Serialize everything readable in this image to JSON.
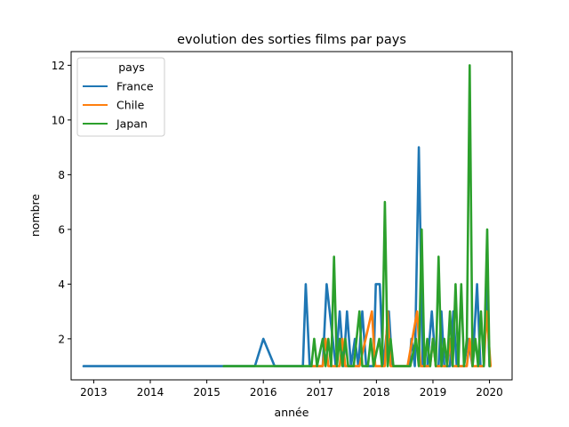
{
  "chart_data": {
    "type": "line",
    "title": "evolution des sorties films par pays",
    "xlabel": "année",
    "ylabel": "nombre",
    "xlim": [
      2012.6,
      2020.4
    ],
    "ylim": [
      0.5,
      12.5
    ],
    "x_ticks": [
      2013,
      2014,
      2015,
      2016,
      2017,
      2018,
      2019,
      2020
    ],
    "y_ticks": [
      2,
      4,
      6,
      8,
      10,
      12
    ],
    "grid": false,
    "legend": {
      "title": "pays",
      "position": "top-left"
    },
    "series": [
      {
        "name": "France",
        "color": "#1f77b4",
        "points": [
          [
            2012.82,
            1
          ],
          [
            2015.85,
            1
          ],
          [
            2016.0,
            2
          ],
          [
            2016.2,
            1
          ],
          [
            2016.7,
            1
          ],
          [
            2016.75,
            4
          ],
          [
            2016.82,
            1
          ],
          [
            2017.05,
            1
          ],
          [
            2017.12,
            4
          ],
          [
            2017.28,
            1
          ],
          [
            2017.35,
            3
          ],
          [
            2017.42,
            1
          ],
          [
            2017.48,
            3
          ],
          [
            2017.55,
            1
          ],
          [
            2017.62,
            2
          ],
          [
            2017.68,
            1
          ],
          [
            2017.75,
            3
          ],
          [
            2017.82,
            1
          ],
          [
            2017.95,
            1
          ],
          [
            2017.99,
            4
          ],
          [
            2018.06,
            4
          ],
          [
            2018.12,
            1
          ],
          [
            2018.22,
            3
          ],
          [
            2018.28,
            1
          ],
          [
            2018.58,
            1
          ],
          [
            2018.62,
            2
          ],
          [
            2018.68,
            1
          ],
          [
            2018.75,
            9
          ],
          [
            2018.82,
            1
          ],
          [
            2018.9,
            1
          ],
          [
            2018.98,
            3
          ],
          [
            2019.05,
            1
          ],
          [
            2019.1,
            1
          ],
          [
            2019.15,
            3
          ],
          [
            2019.2,
            1
          ],
          [
            2019.3,
            1
          ],
          [
            2019.36,
            3
          ],
          [
            2019.42,
            1
          ],
          [
            2019.55,
            1
          ],
          [
            2019.62,
            2
          ],
          [
            2019.7,
            1
          ],
          [
            2019.78,
            4
          ],
          [
            2019.84,
            1
          ],
          [
            2019.9,
            1
          ],
          [
            2019.95,
            4
          ],
          [
            2020.0,
            1
          ]
        ]
      },
      {
        "name": "Chile",
        "color": "#ff7f0e",
        "points": [
          [
            2016.85,
            1
          ],
          [
            2017.05,
            1
          ],
          [
            2017.1,
            2
          ],
          [
            2017.15,
            1
          ],
          [
            2017.35,
            1
          ],
          [
            2017.4,
            2
          ],
          [
            2017.45,
            1
          ],
          [
            2017.7,
            1
          ],
          [
            2017.92,
            3
          ],
          [
            2017.98,
            1
          ],
          [
            2018.15,
            1
          ],
          [
            2018.2,
            3
          ],
          [
            2018.25,
            1
          ],
          [
            2018.55,
            1
          ],
          [
            2018.72,
            3
          ],
          [
            2018.78,
            1
          ],
          [
            2018.95,
            1
          ],
          [
            2019.0,
            2
          ],
          [
            2019.05,
            1
          ],
          [
            2019.25,
            1
          ],
          [
            2019.3,
            2
          ],
          [
            2019.35,
            1
          ],
          [
            2019.6,
            1
          ],
          [
            2019.65,
            2
          ],
          [
            2019.7,
            1
          ],
          [
            2019.9,
            1
          ],
          [
            2019.95,
            3
          ],
          [
            2020.02,
            1
          ]
        ]
      },
      {
        "name": "Japan",
        "color": "#2ca02c",
        "points": [
          [
            2015.3,
            1
          ],
          [
            2016.85,
            1
          ],
          [
            2016.9,
            2
          ],
          [
            2016.95,
            1
          ],
          [
            2017.05,
            2
          ],
          [
            2017.1,
            1
          ],
          [
            2017.15,
            2
          ],
          [
            2017.2,
            1
          ],
          [
            2017.25,
            5
          ],
          [
            2017.3,
            1
          ],
          [
            2017.35,
            2
          ],
          [
            2017.4,
            1
          ],
          [
            2017.45,
            2
          ],
          [
            2017.5,
            1
          ],
          [
            2017.6,
            1
          ],
          [
            2017.7,
            3
          ],
          [
            2017.75,
            1
          ],
          [
            2017.85,
            1
          ],
          [
            2017.9,
            2
          ],
          [
            2017.95,
            1
          ],
          [
            2018.05,
            2
          ],
          [
            2018.1,
            1
          ],
          [
            2018.15,
            7
          ],
          [
            2018.2,
            1
          ],
          [
            2018.25,
            2
          ],
          [
            2018.3,
            1
          ],
          [
            2018.6,
            1
          ],
          [
            2018.7,
            2
          ],
          [
            2018.75,
            1
          ],
          [
            2018.8,
            6
          ],
          [
            2018.85,
            1
          ],
          [
            2018.9,
            2
          ],
          [
            2018.95,
            1
          ],
          [
            2019.0,
            2
          ],
          [
            2019.05,
            1
          ],
          [
            2019.1,
            5
          ],
          [
            2019.15,
            1
          ],
          [
            2019.2,
            2
          ],
          [
            2019.25,
            1
          ],
          [
            2019.3,
            3
          ],
          [
            2019.35,
            1
          ],
          [
            2019.4,
            4
          ],
          [
            2019.45,
            1
          ],
          [
            2019.5,
            4
          ],
          [
            2019.55,
            1
          ],
          [
            2019.6,
            2
          ],
          [
            2019.65,
            12
          ],
          [
            2019.7,
            1
          ],
          [
            2019.75,
            2
          ],
          [
            2019.8,
            1
          ],
          [
            2019.85,
            3
          ],
          [
            2019.9,
            1
          ],
          [
            2019.96,
            6
          ],
          [
            2020.0,
            1
          ]
        ]
      }
    ]
  }
}
